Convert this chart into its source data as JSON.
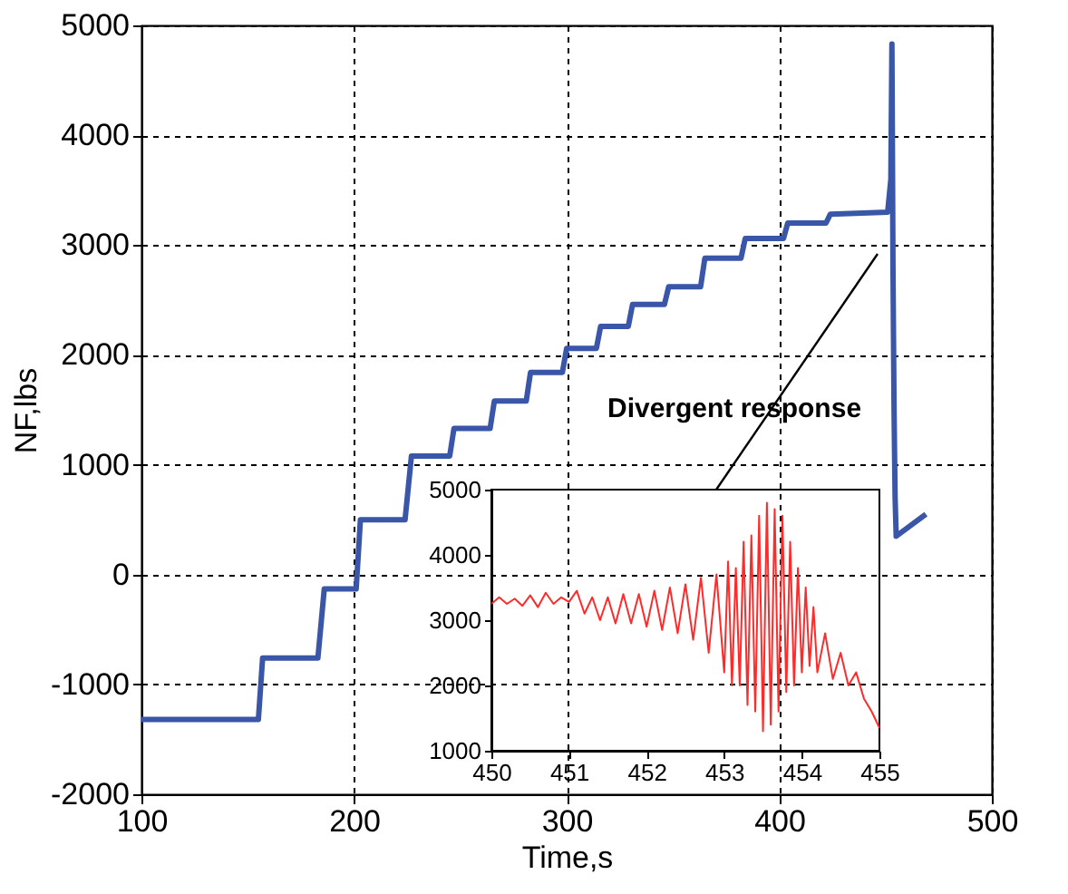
{
  "chart_data": [
    {
      "type": "line",
      "xlabel": "Time,s",
      "ylabel": "NF,lbs",
      "xlim": [
        100,
        500
      ],
      "xticks": [
        100,
        200,
        300,
        400,
        500
      ],
      "ylim": [
        -2000,
        5000
      ],
      "yticks": [
        -2000,
        -1000,
        0,
        1000,
        2000,
        3000,
        4000,
        5000
      ],
      "grid": true,
      "annotations": [
        "Divergent response"
      ],
      "series": [
        {
          "color": "#3a56a8",
          "x": [
            100,
            155,
            157,
            183,
            186,
            201,
            203,
            224,
            227,
            245,
            247,
            264,
            266,
            281,
            283,
            298,
            300,
            314,
            316,
            329,
            331,
            346,
            348,
            363,
            365,
            382,
            384,
            402,
            404,
            422,
            424,
            451,
            452.5,
            453,
            453.5,
            454,
            454.5,
            455,
            469
          ],
          "values": [
            -1320,
            -1320,
            -760,
            -760,
            -130,
            -130,
            500,
            500,
            1080,
            1080,
            1330,
            1330,
            1580,
            1580,
            1840,
            1840,
            2060,
            2060,
            2260,
            2260,
            2460,
            2460,
            2620,
            2620,
            2880,
            2880,
            3060,
            3060,
            3200,
            3200,
            3280,
            3300,
            3600,
            4830,
            2800,
            1500,
            700,
            350,
            550
          ]
        }
      ]
    },
    {
      "type": "line",
      "xlim": [
        450,
        455
      ],
      "xticks": [
        450,
        451,
        452,
        453,
        454,
        455
      ],
      "ylim": [
        1000,
        5000
      ],
      "yticks": [
        1000,
        2000,
        3000,
        4000,
        5000
      ],
      "series": [
        {
          "color": "#ff2a2a",
          "x": [
            450.0,
            450.1,
            450.2,
            450.3,
            450.4,
            450.5,
            450.6,
            450.7,
            450.8,
            450.9,
            451.0,
            451.1,
            451.2,
            451.3,
            451.4,
            451.5,
            451.6,
            451.7,
            451.8,
            451.9,
            452.0,
            452.1,
            452.2,
            452.3,
            452.4,
            452.5,
            452.6,
            452.7,
            452.8,
            452.9,
            453.0,
            453.05,
            453.1,
            453.15,
            453.2,
            453.25,
            453.3,
            453.35,
            453.4,
            453.45,
            453.5,
            453.55,
            453.6,
            453.65,
            453.7,
            453.75,
            453.8,
            453.85,
            453.9,
            453.95,
            454.0,
            454.05,
            454.1,
            454.15,
            454.2,
            454.3,
            454.4,
            454.5,
            454.6,
            454.7,
            454.8,
            454.9,
            455.0
          ],
          "values": [
            3250,
            3350,
            3250,
            3330,
            3220,
            3380,
            3200,
            3420,
            3250,
            3350,
            3280,
            3450,
            3100,
            3350,
            3000,
            3350,
            2950,
            3400,
            2950,
            3400,
            2900,
            3450,
            2850,
            3500,
            2800,
            3550,
            2700,
            3650,
            2500,
            3700,
            2200,
            3900,
            2000,
            3800,
            2000,
            4200,
            1700,
            4300,
            1600,
            4600,
            1300,
            4800,
            1400,
            4700,
            1600,
            4600,
            1900,
            4200,
            2000,
            3800,
            2200,
            3500,
            2300,
            3200,
            2200,
            2800,
            2100,
            2500,
            2000,
            2200,
            1800,
            1600,
            1350
          ]
        }
      ]
    }
  ]
}
